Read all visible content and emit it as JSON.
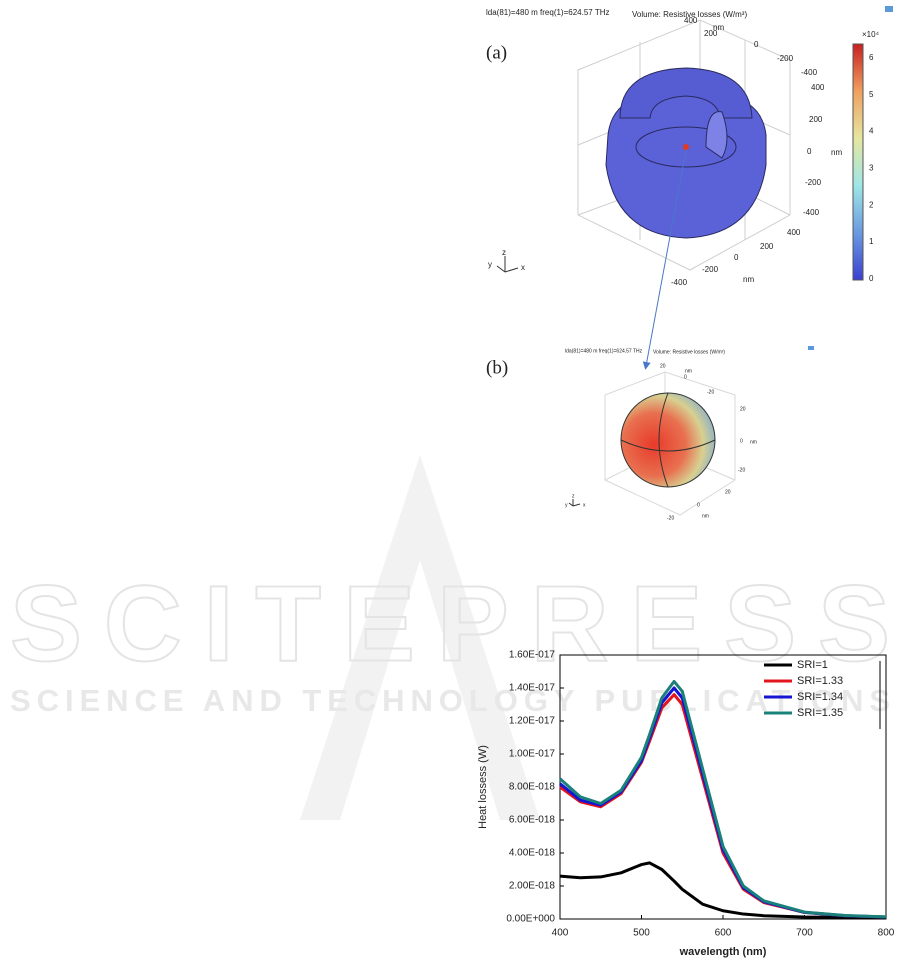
{
  "figure_a": {
    "label": "(a)",
    "header": "lda(81)=480 m freq(1)=624.57 THz",
    "plot_title": "Volume: Resistive losses (W/m³)",
    "axis_labels": [
      "400",
      "nm",
      "200",
      "0",
      "-200",
      "-400",
      "400",
      "200",
      "0",
      "nm",
      "-200",
      "-400",
      "400",
      "200",
      "0",
      "-200",
      "-400",
      "nm"
    ],
    "colorbar_multiplier": "×10⁴",
    "colorbar_ticks": [
      6,
      5,
      4,
      3,
      2,
      1,
      0
    ],
    "triad": [
      "z",
      "y",
      "x"
    ]
  },
  "figure_b": {
    "label": "(b)",
    "header": "lda(81)=480 m freq(1)=624.57 THz",
    "plot_title": "Volume: Resistive losses (W/m³)",
    "axis_labels": [
      "20",
      "nm",
      "0",
      "-20",
      "20",
      "0",
      "nm",
      "-20",
      "20",
      "0",
      "-20",
      "nm"
    ],
    "triad": [
      "z",
      "y",
      "x"
    ]
  },
  "watermark": {
    "title": "SCITEPRESS",
    "subtitle": "SCIENCE AND TECHNOLOGY PUBLICATIONS"
  },
  "chart_data": {
    "type": "line",
    "y_label": "Heat lossess (W)",
    "x_label": "wavelength (nm)",
    "x": [
      400,
      425,
      450,
      475,
      500,
      510,
      525,
      540,
      550,
      575,
      600,
      625,
      650,
      700,
      750,
      800
    ],
    "series": [
      {
        "name": "SRI=1",
        "color": "#000000",
        "values": [
          2.6e-18,
          2.5e-18,
          2.55e-18,
          2.8e-18,
          3.3e-18,
          3.4e-18,
          3e-18,
          2.3e-18,
          1.8e-18,
          9e-19,
          5e-19,
          3e-19,
          2e-19,
          1.2e-19,
          1e-19,
          8e-20
        ]
      },
      {
        "name": "SRI=1.33",
        "color": "#e3141c",
        "values": [
          8e-18,
          7.1e-18,
          6.8e-18,
          7.6e-18,
          9.5e-18,
          1.08e-17,
          1.28e-17,
          1.36e-17,
          1.3e-17,
          8.5e-18,
          4e-18,
          1.8e-18,
          1e-18,
          4e-19,
          2e-19,
          1.2e-19
        ]
      },
      {
        "name": "SRI=1.34",
        "color": "#1414d2",
        "values": [
          8.2e-18,
          7.2e-18,
          6.9e-18,
          7.7e-18,
          9.6e-18,
          1.1e-17,
          1.31e-17,
          1.4e-17,
          1.34e-17,
          8.8e-18,
          4.2e-18,
          1.9e-18,
          1.05e-18,
          4e-19,
          2e-19,
          1.2e-19
        ]
      },
      {
        "name": "SRI=1.35",
        "color": "#1a807a",
        "values": [
          8.5e-18,
          7.4e-18,
          7e-18,
          7.8e-18,
          9.8e-18,
          1.12e-17,
          1.34e-17,
          1.44e-17,
          1.38e-17,
          9.1e-18,
          4.4e-18,
          2e-18,
          1.1e-18,
          4.2e-19,
          2.1e-19,
          1.3e-19
        ]
      }
    ],
    "xlim": [
      400,
      800
    ],
    "xticks": [
      400,
      500,
      600,
      700,
      800
    ],
    "ylim": [
      0,
      1.6e-17
    ],
    "yticks": [
      {
        "value": 0,
        "label": "0.00E+000"
      },
      {
        "value": 2e-18,
        "label": "2.00E-018"
      },
      {
        "value": 4e-18,
        "label": "4.00E-018"
      },
      {
        "value": 6e-18,
        "label": "6.00E-018"
      },
      {
        "value": 8e-18,
        "label": "8.00E-018"
      },
      {
        "value": 1e-17,
        "label": "1.00E-017"
      },
      {
        "value": 1.2e-17,
        "label": "1.20E-017"
      },
      {
        "value": 1.4e-17,
        "label": "1.40E-017"
      },
      {
        "value": 1.6e-17,
        "label": "1.60E-017"
      }
    ],
    "legend": "upper right",
    "line_width": 3
  }
}
